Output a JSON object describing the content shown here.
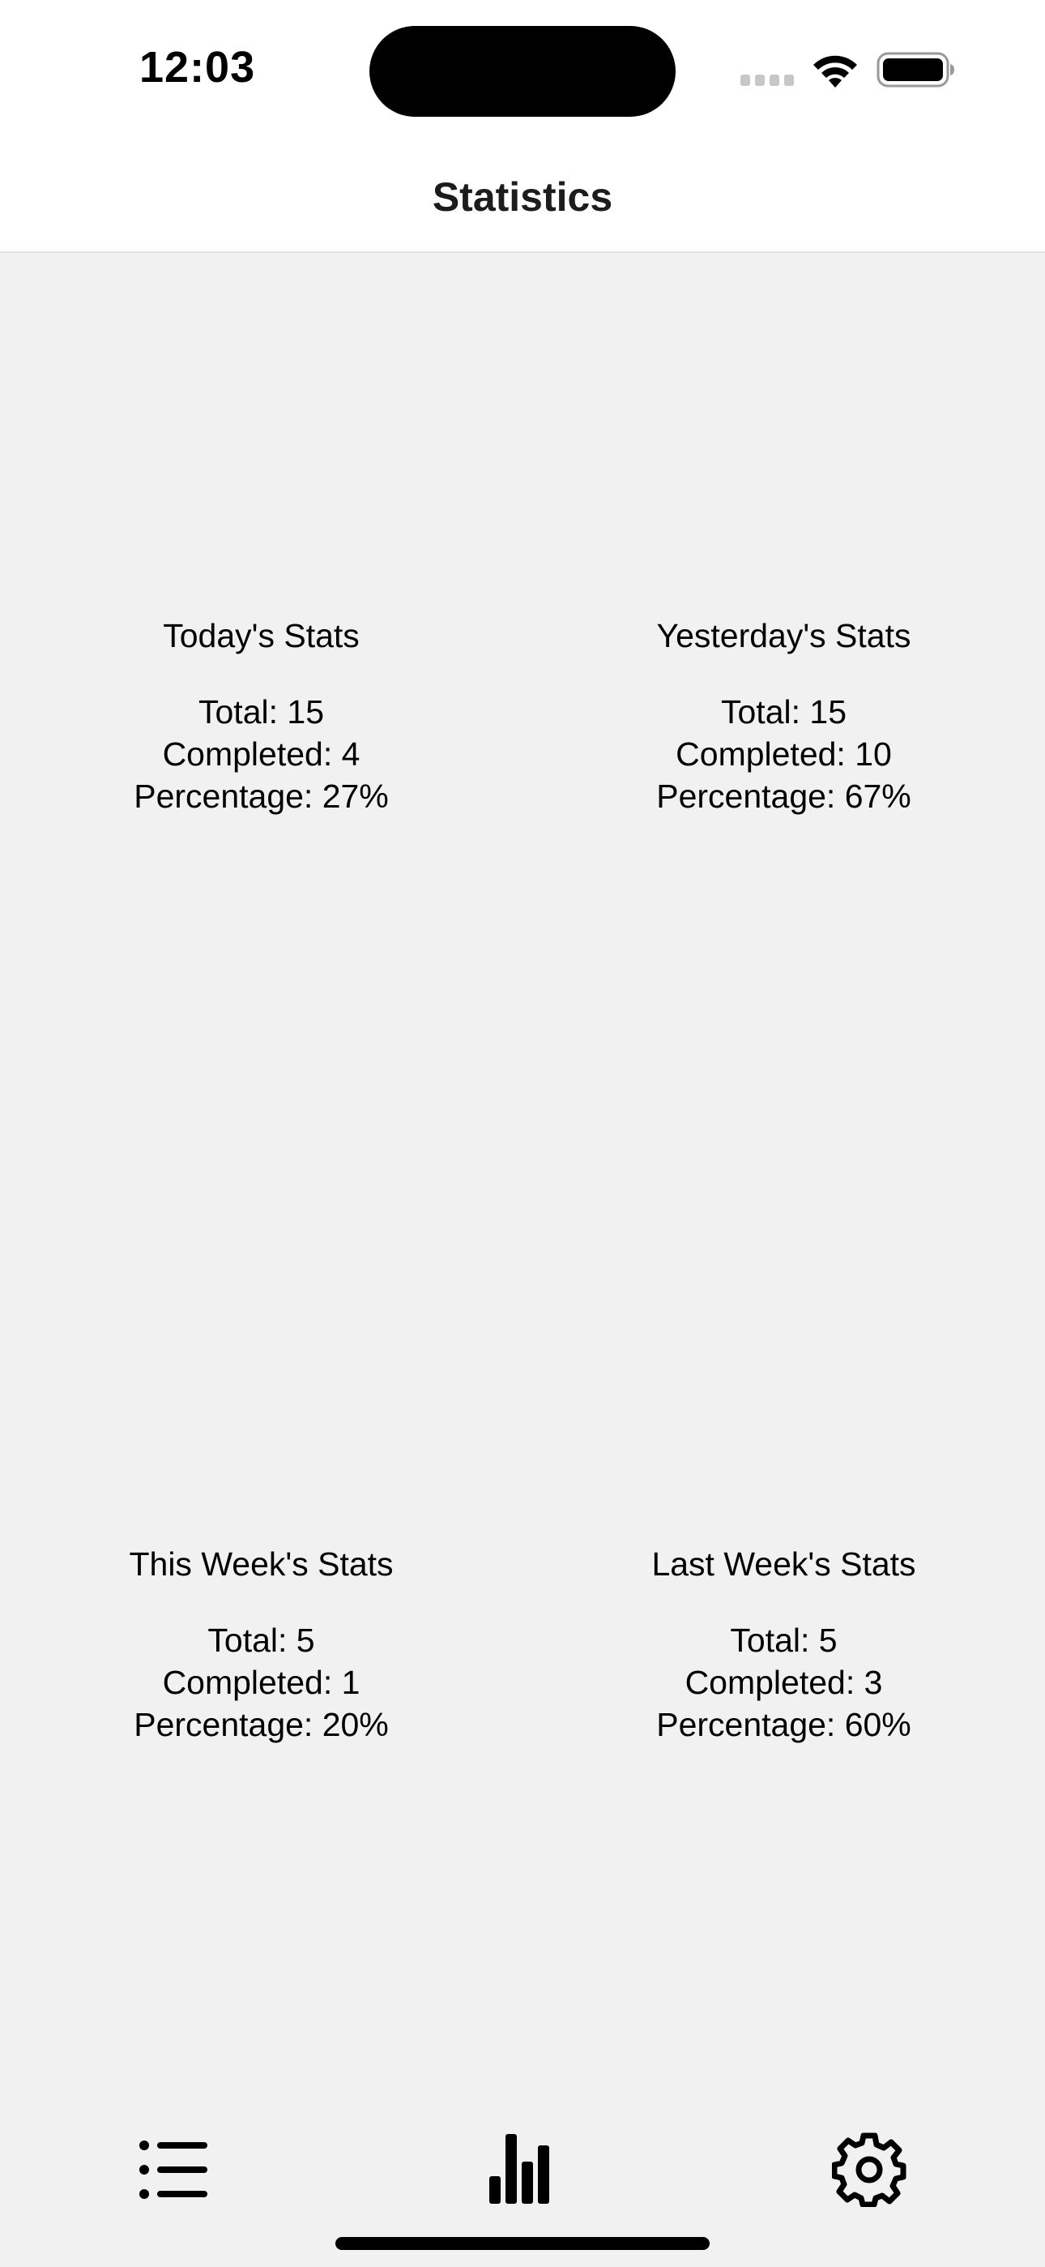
{
  "status_bar": {
    "time": "12:03"
  },
  "nav": {
    "title": "Statistics"
  },
  "stats": [
    {
      "title": "Today's Stats",
      "total": "Total: 15",
      "completed": "Completed: 4",
      "percentage": "Percentage: 27%"
    },
    {
      "title": "Yesterday's Stats",
      "total": "Total: 15",
      "completed": "Completed: 10",
      "percentage": "Percentage: 67%"
    },
    {
      "title": "This Week's Stats",
      "total": "Total: 5",
      "completed": "Completed: 1",
      "percentage": "Percentage: 20%"
    },
    {
      "title": "Last Week's Stats",
      "total": "Total: 5",
      "completed": "Completed: 3",
      "percentage": "Percentage: 60%"
    }
  ],
  "tab_bar": {
    "tabs": [
      {
        "icon": "list-icon",
        "selected": false
      },
      {
        "icon": "bar-chart-icon",
        "selected": true
      },
      {
        "icon": "gear-icon",
        "selected": false
      }
    ]
  },
  "colors": {
    "background": "#f1f1f1",
    "bar_background": "#ffffff",
    "text": "#000000"
  }
}
